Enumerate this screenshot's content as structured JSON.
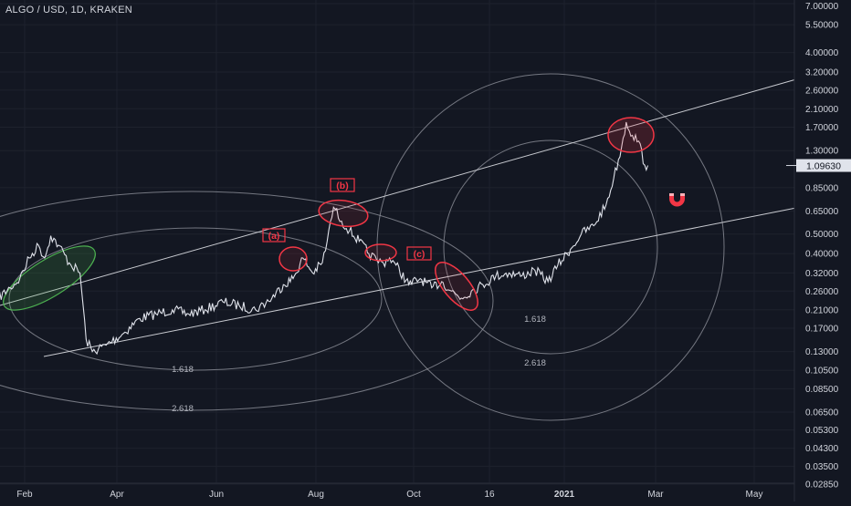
{
  "header": {
    "symbol": "ALGO / USD, 1D, KRAKEN"
  },
  "colors": {
    "background": "#131722",
    "price_line": "#e0e3eb",
    "grid": "#1e222d",
    "axis_text": "#d1d4dc",
    "annotation_red": "#f23645",
    "ellipse_green": "#4caf50",
    "circle_gray": "#b2b5be"
  },
  "chart_data": {
    "type": "line",
    "scale": "log",
    "ylim": [
      0.0285,
      7.0
    ],
    "x_tick_labels": [
      "Feb",
      "Apr",
      "Jun",
      "Aug",
      "Oct",
      "16",
      "2021",
      "Mar",
      "May"
    ],
    "y_tick_labels": [
      "7.00000",
      "5.50000",
      "4.00000",
      "3.20000",
      "2.60000",
      "2.10000",
      "1.70000",
      "1.30000",
      "0.85000",
      "0.65000",
      "0.50000",
      "0.40000",
      "0.32000",
      "0.26000",
      "0.21000",
      "0.17000",
      "0.13000",
      "0.10500",
      "0.08500",
      "0.06500",
      "0.05300",
      "0.04300",
      "0.03500",
      "0.02850"
    ],
    "y_tick_values": [
      7.0,
      5.5,
      4.0,
      3.2,
      2.6,
      2.1,
      1.7,
      1.3,
      0.85,
      0.65,
      0.5,
      0.4,
      0.32,
      0.26,
      0.21,
      0.17,
      0.13,
      0.105,
      0.085,
      0.065,
      0.053,
      0.043,
      0.035,
      0.0285
    ],
    "current_price": {
      "label": "1.09630",
      "value": 1.0963
    },
    "series": [
      {
        "dates": [
          "2020-01-10",
          "2020-01-20",
          "2020-01-28",
          "2020-02-04",
          "2020-02-10",
          "2020-02-14",
          "2020-02-18",
          "2020-02-23",
          "2020-03-01",
          "2020-03-08",
          "2020-03-12",
          "2020-03-16",
          "2020-03-25",
          "2020-04-05",
          "2020-04-15",
          "2020-04-25",
          "2020-05-05",
          "2020-05-15",
          "2020-05-25",
          "2020-06-05",
          "2020-06-15",
          "2020-06-25",
          "2020-07-05",
          "2020-07-12",
          "2020-07-18",
          "2020-07-24",
          "2020-07-30",
          "2020-08-05",
          "2020-08-08",
          "2020-08-12",
          "2020-08-17",
          "2020-08-22",
          "2020-08-28",
          "2020-09-03",
          "2020-09-08",
          "2020-09-12",
          "2020-09-16",
          "2020-09-20",
          "2020-09-28",
          "2020-10-05",
          "2020-10-12",
          "2020-10-18",
          "2020-10-24",
          "2020-10-30",
          "2020-11-05",
          "2020-11-12",
          "2020-11-20",
          "2020-11-28",
          "2020-12-06",
          "2020-12-14",
          "2020-12-22",
          "2020-12-28",
          "2021-01-05",
          "2021-01-12",
          "2021-01-20",
          "2021-01-28",
          "2021-02-02",
          "2021-02-07",
          "2021-02-10",
          "2021-02-14",
          "2021-02-18",
          "2021-02-22",
          "2021-02-24"
        ],
        "values": [
          0.24,
          0.27,
          0.3,
          0.38,
          0.44,
          0.38,
          0.49,
          0.44,
          0.36,
          0.32,
          0.15,
          0.13,
          0.14,
          0.16,
          0.19,
          0.2,
          0.21,
          0.2,
          0.21,
          0.23,
          0.22,
          0.21,
          0.24,
          0.28,
          0.3,
          0.38,
          0.32,
          0.36,
          0.46,
          0.68,
          0.58,
          0.52,
          0.46,
          0.4,
          0.37,
          0.36,
          0.38,
          0.35,
          0.28,
          0.3,
          0.27,
          0.29,
          0.26,
          0.24,
          0.26,
          0.28,
          0.31,
          0.32,
          0.31,
          0.33,
          0.29,
          0.35,
          0.42,
          0.5,
          0.55,
          0.7,
          0.95,
          1.35,
          1.8,
          1.55,
          1.45,
          1.1,
          1.0963
        ]
      }
    ],
    "annotations": [
      {
        "label": "(a)"
      },
      {
        "label": "(b)"
      },
      {
        "label": "(c)"
      },
      {
        "label": "1.618"
      },
      {
        "label": "2.618"
      },
      {
        "label": "1.618"
      },
      {
        "label": "2.618"
      }
    ]
  }
}
